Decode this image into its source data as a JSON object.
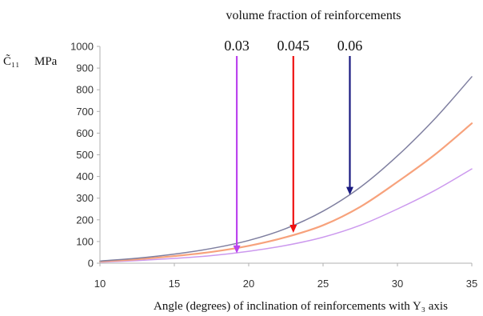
{
  "chart_data": {
    "type": "line",
    "title": "volume fraction of reinforcements",
    "xlabel": "Angle (degrees) of inclination of reinforcements with Y₃ axis",
    "ylabel_symbol": "C̃₁₁",
    "ylabel_unit": "MPa",
    "xlim": [
      10,
      35
    ],
    "ylim": [
      0,
      1000
    ],
    "x_ticks": [
      "10",
      "15",
      "20",
      "25",
      "30",
      "35"
    ],
    "y_ticks": [
      "0",
      "100",
      "200",
      "300",
      "400",
      "500",
      "600",
      "700",
      "800",
      "900",
      "1000"
    ],
    "grid": false,
    "series": [
      {
        "name": "0.03",
        "color": "#cc99ee",
        "x": [
          10,
          12.5,
          15,
          17.5,
          20,
          22.5,
          25,
          27.5,
          30,
          32.5,
          35
        ],
        "values": [
          5,
          12,
          22,
          35,
          55,
          82,
          120,
          175,
          250,
          335,
          435
        ]
      },
      {
        "name": "0.045",
        "color": "#f7a27c",
        "x": [
          10,
          12.5,
          15,
          17.5,
          20,
          22.5,
          25,
          27.5,
          30,
          32.5,
          35
        ],
        "values": [
          8,
          18,
          33,
          52,
          80,
          120,
          175,
          260,
          375,
          500,
          645
        ]
      },
      {
        "name": "0.06",
        "color": "#7f7fa0",
        "x": [
          10,
          12.5,
          15,
          17.5,
          20,
          22.5,
          25,
          27.5,
          30,
          32.5,
          35
        ],
        "values": [
          10,
          23,
          42,
          68,
          105,
          160,
          240,
          350,
          495,
          665,
          860
        ]
      }
    ],
    "annotations": [
      {
        "label": "0.03",
        "color": "#bb44ee",
        "x": 19.2,
        "y_tip": 45
      },
      {
        "label": "0.045",
        "color": "#ee1111",
        "x": 23.0,
        "y_tip": 140
      },
      {
        "label": "0.06",
        "color": "#1a1a80",
        "x": 26.8,
        "y_tip": 315
      }
    ]
  }
}
